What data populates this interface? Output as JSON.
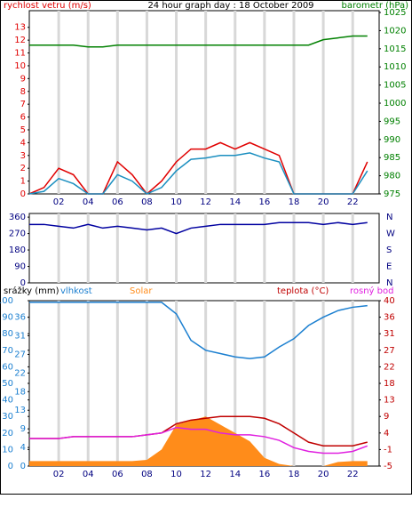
{
  "chart_data": [
    {
      "type": "line",
      "title": "24 hour graph day : 18 October 2009",
      "ylabel": "rychlost vetru (m/s)",
      "y2label": "barometr (hPa)",
      "x": [
        0,
        1,
        2,
        3,
        4,
        5,
        6,
        7,
        8,
        9,
        10,
        11,
        12,
        13,
        14,
        15,
        16,
        17,
        18,
        19,
        20,
        21,
        22,
        23
      ],
      "xlim": [
        0,
        23.8
      ],
      "xticks": [
        {
          "value": 2,
          "label": "02"
        },
        {
          "value": 4,
          "label": "04"
        },
        {
          "value": 6,
          "label": "06"
        },
        {
          "value": 8,
          "label": "08"
        },
        {
          "value": 10,
          "label": "10"
        },
        {
          "value": 12,
          "label": "12"
        },
        {
          "value": 14,
          "label": "14"
        },
        {
          "value": 16,
          "label": "16"
        },
        {
          "value": 18,
          "label": "18"
        },
        {
          "value": 20,
          "label": "20"
        },
        {
          "value": 22,
          "label": "22"
        }
      ],
      "ylim": [
        0,
        14.3
      ],
      "yticks": [
        0,
        1,
        2,
        3,
        4,
        5,
        6,
        7,
        8,
        9,
        10,
        11,
        12,
        13
      ],
      "y2lim": [
        975,
        1025.5
      ],
      "y2ticks": [
        975,
        980,
        985,
        990,
        995,
        1000,
        1005,
        1010,
        1015,
        1020,
        1025
      ],
      "grid": true,
      "series": [
        {
          "color": "#e00000",
          "values": [
            0,
            0.5,
            2,
            1.5,
            0,
            0,
            2.5,
            1.5,
            0,
            1,
            2.5,
            3.5,
            3.5,
            4,
            3.5,
            4,
            3.5,
            3,
            0,
            0,
            0,
            0,
            0,
            2.5
          ]
        },
        {
          "color": "#1b8fc0",
          "values": [
            0,
            0.2,
            1.2,
            0.8,
            0,
            0,
            1.5,
            1,
            0,
            0.5,
            1.8,
            2.7,
            2.8,
            3,
            3,
            3.2,
            2.8,
            2.5,
            0,
            0,
            0,
            0,
            0,
            1.8
          ]
        },
        {
          "color": "#008000",
          "axis": "y2",
          "values": [
            1016,
            1016,
            1016,
            1016,
            1015.5,
            1015.5,
            1016,
            1016,
            1016,
            1016,
            1016,
            1016,
            1016,
            1016,
            1016,
            1016,
            1016,
            1016,
            1016,
            1016,
            1017.5,
            1018,
            1018.5,
            1018.5
          ]
        }
      ]
    },
    {
      "type": "line",
      "x": [
        0,
        1,
        2,
        3,
        4,
        5,
        6,
        7,
        8,
        9,
        10,
        11,
        12,
        13,
        14,
        15,
        16,
        17,
        18,
        19,
        20,
        21,
        22,
        23
      ],
      "xlim": [
        0,
        23.8
      ],
      "ylim": [
        0,
        380
      ],
      "yticks": [
        0,
        90,
        180,
        270,
        360
      ],
      "y2ticklabels": [
        "N",
        "E",
        "S",
        "W",
        "N"
      ],
      "series": [
        {
          "color": "#0000a0",
          "values": [
            320,
            320,
            310,
            300,
            320,
            300,
            310,
            300,
            290,
            300,
            270,
            300,
            310,
            320,
            320,
            320,
            320,
            330,
            330,
            330,
            320,
            330,
            320,
            330
          ]
        }
      ]
    },
    {
      "type": "line",
      "legend": [
        "srážky (mm)",
        "vlhkost",
        "Solar",
        "teplota (°C)",
        "rosný bod"
      ],
      "x": [
        0,
        1,
        2,
        3,
        4,
        5,
        6,
        7,
        8,
        9,
        10,
        11,
        12,
        13,
        14,
        15,
        16,
        17,
        18,
        19,
        20,
        21,
        22,
        23
      ],
      "xlim": [
        0,
        23.8
      ],
      "xticks": [
        {
          "value": 2,
          "label": "02"
        },
        {
          "value": 4,
          "label": "04"
        },
        {
          "value": 6,
          "label": "06"
        },
        {
          "value": 8,
          "label": "08"
        },
        {
          "value": 10,
          "label": "10"
        },
        {
          "value": 12,
          "label": "12"
        },
        {
          "value": 14,
          "label": "14"
        },
        {
          "value": 16,
          "label": "16"
        },
        {
          "value": 18,
          "label": "18"
        },
        {
          "value": 20,
          "label": "20"
        },
        {
          "value": 22,
          "label": "22"
        }
      ],
      "ylim": [
        0,
        100
      ],
      "yticks": [
        0,
        10,
        20,
        30,
        40,
        50,
        60,
        70,
        80,
        90,
        100
      ],
      "y3lim": [
        0,
        40
      ],
      "y3ticks": [
        0,
        {
          "value": 4.5,
          "label": "4"
        },
        9,
        {
          "value": 13.5,
          "label": "13"
        },
        18,
        {
          "value": 22.5,
          "label": "22"
        },
        27,
        {
          "value": 31.5,
          "label": "31"
        },
        36
      ],
      "y2lim": [
        -5,
        40
      ],
      "y2ticks": [
        -5,
        {
          "value": -0.5,
          "label": "-1"
        },
        {
          "value": 4,
          "label": "4"
        },
        {
          "value": 8.5,
          "label": "9"
        },
        {
          "value": 13,
          "label": "13"
        },
        {
          "value": 17.5,
          "label": "18"
        },
        {
          "value": 22,
          "label": "22"
        },
        {
          "value": 26.5,
          "label": "27"
        },
        {
          "value": 31,
          "label": "31"
        },
        {
          "value": 35.5,
          "label": "36"
        },
        40
      ],
      "series": [
        {
          "name": "Solar",
          "color": "#ff8c1a",
          "axis": "y3",
          "kind": "area",
          "values": [
            1.2,
            1.2,
            1.2,
            1.2,
            1.2,
            1.2,
            1.2,
            1.2,
            1.5,
            4,
            10,
            11,
            12,
            10,
            8,
            6,
            2,
            0.5,
            0,
            0,
            0,
            1,
            1.2,
            1.2
          ]
        },
        {
          "name": "vlhkost",
          "color": "#1b7fd0",
          "values": [
            99,
            99,
            99,
            99,
            99,
            99,
            99,
            99,
            99,
            99,
            92,
            76,
            70,
            68,
            66,
            65,
            66,
            72,
            77,
            85,
            90,
            94,
            96,
            97
          ]
        },
        {
          "name": "teplota",
          "color": "#c00000",
          "axis": "y2",
          "values": [
            2.5,
            2.5,
            2.5,
            3,
            3,
            3,
            3,
            3,
            3.5,
            4,
            6.5,
            7.5,
            8,
            8.5,
            8.5,
            8.5,
            8,
            6.5,
            4,
            1.5,
            0.5,
            0.5,
            0.5,
            1.5
          ]
        },
        {
          "name": "rosný bod",
          "color": "#e020e0",
          "axis": "y2",
          "values": [
            2.5,
            2.5,
            2.5,
            3,
            3,
            3,
            3,
            3,
            3.5,
            4,
            5.5,
            5,
            5,
            4,
            3.5,
            3.5,
            3,
            2,
            0,
            -1,
            -1.5,
            -1.5,
            -1,
            0.5
          ]
        }
      ]
    }
  ]
}
